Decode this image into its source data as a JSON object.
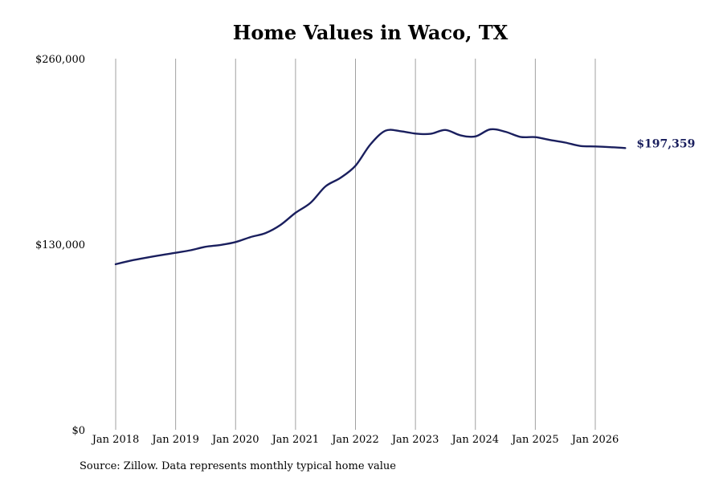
{
  "chart_data": {
    "type": "line",
    "title": "Home Values in Waco, TX",
    "source": "Source: Zillow. Data represents monthly typical home value",
    "xlabel": "",
    "ylabel": "",
    "x_ticks": [
      "Jan 2018",
      "Jan 2019",
      "Jan 2020",
      "Jan 2021",
      "Jan 2022",
      "Jan 2023",
      "Jan 2024",
      "Jan 2025",
      "Jan 2026"
    ],
    "y_ticks": [
      "$0",
      "$130,000",
      "$260,000"
    ],
    "ylim": [
      0,
      260000
    ],
    "xlim": [
      "2018-01",
      "2026-08"
    ],
    "grid": "vertical",
    "line_color": "#1a1f5e",
    "end_label": "$197,359",
    "series": [
      {
        "name": "",
        "points": [
          [
            "2018-01",
            116000
          ],
          [
            "2018-04",
            118500
          ],
          [
            "2018-07",
            120500
          ],
          [
            "2018-10",
            122300
          ],
          [
            "2019-01",
            124000
          ],
          [
            "2019-04",
            125800
          ],
          [
            "2019-07",
            128200
          ],
          [
            "2019-10",
            129500
          ],
          [
            "2020-01",
            131500
          ],
          [
            "2020-04",
            135000
          ],
          [
            "2020-07",
            137800
          ],
          [
            "2020-10",
            143500
          ],
          [
            "2021-01",
            152000
          ],
          [
            "2021-04",
            159000
          ],
          [
            "2021-07",
            170500
          ],
          [
            "2021-10",
            176500
          ],
          [
            "2022-01",
            185000
          ],
          [
            "2022-04",
            200000
          ],
          [
            "2022-07",
            209500
          ],
          [
            "2022-10",
            209200
          ],
          [
            "2023-01",
            207500
          ],
          [
            "2023-04",
            207300
          ],
          [
            "2023-07",
            210000
          ],
          [
            "2023-10",
            206300
          ],
          [
            "2024-01",
            205500
          ],
          [
            "2024-04",
            210500
          ],
          [
            "2024-07",
            208800
          ],
          [
            "2024-10",
            205200
          ],
          [
            "2025-01",
            205000
          ],
          [
            "2025-04",
            203000
          ],
          [
            "2025-07",
            201200
          ],
          [
            "2025-10",
            198800
          ],
          [
            "2026-01",
            198500
          ],
          [
            "2026-04",
            198000
          ],
          [
            "2026-07",
            197359
          ]
        ]
      }
    ]
  }
}
